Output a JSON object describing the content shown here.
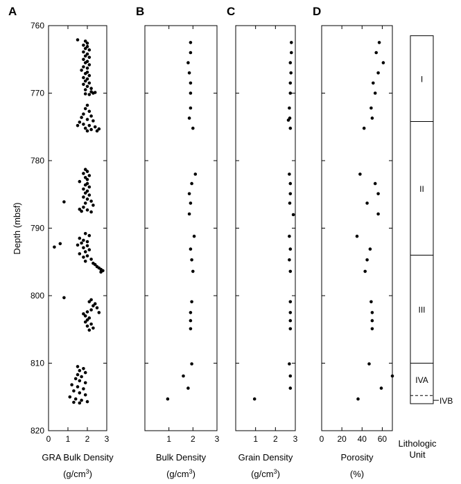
{
  "chart_data": {
    "type": "scatter",
    "ylabel": "Depth (mbsf)",
    "ylim": [
      760,
      820
    ],
    "y_inverted": true,
    "yticks": [
      "760",
      "770",
      "780",
      "790",
      "800",
      "810",
      "820"
    ],
    "grid": false,
    "panels": [
      {
        "letter": "A",
        "xlabel": "GRA Bulk Density",
        "units": {
          "pre": "(g/cm",
          "sup": "3",
          "post": ")"
        },
        "xlim": [
          0,
          3
        ],
        "xticks": [
          "0",
          "1",
          "2",
          "3"
        ],
        "points": [
          [
            1.5,
            762.1
          ],
          [
            1.9,
            762.3
          ],
          [
            2.0,
            762.6
          ],
          [
            1.8,
            762.9
          ],
          [
            2.0,
            763.1
          ],
          [
            1.9,
            763.4
          ],
          [
            2.1,
            763.6
          ],
          [
            1.8,
            763.9
          ],
          [
            2.0,
            764.2
          ],
          [
            1.9,
            764.5
          ],
          [
            2.1,
            764.7
          ],
          [
            1.8,
            765.0
          ],
          [
            2.0,
            765.3
          ],
          [
            1.9,
            765.5
          ],
          [
            2.1,
            765.8
          ],
          [
            1.8,
            766.1
          ],
          [
            2.0,
            766.3
          ],
          [
            1.7,
            766.6
          ],
          [
            2.0,
            766.9
          ],
          [
            1.9,
            767.1
          ],
          [
            2.1,
            767.4
          ],
          [
            1.8,
            767.7
          ],
          [
            2.0,
            767.9
          ],
          [
            1.9,
            768.2
          ],
          [
            2.1,
            768.5
          ],
          [
            1.8,
            768.7
          ],
          [
            2.0,
            769.0
          ],
          [
            2.2,
            769.3
          ],
          [
            1.9,
            769.5
          ],
          [
            2.2,
            769.8
          ],
          [
            2.3,
            770.0
          ],
          [
            2.1,
            770.2
          ],
          [
            2.4,
            769.9
          ],
          [
            1.9,
            770.1
          ],
          [
            2.0,
            771.8
          ],
          [
            1.9,
            772.3
          ],
          [
            2.1,
            772.7
          ],
          [
            1.8,
            773.1
          ],
          [
            2.2,
            773.4
          ],
          [
            1.7,
            773.6
          ],
          [
            2.0,
            773.9
          ],
          [
            2.3,
            774.1
          ],
          [
            1.6,
            774.3
          ],
          [
            1.8,
            774.6
          ],
          [
            2.1,
            774.8
          ],
          [
            2.4,
            775.0
          ],
          [
            1.9,
            775.2
          ],
          [
            2.2,
            775.4
          ],
          [
            2.5,
            775.6
          ],
          [
            1.5,
            774.8
          ],
          [
            2.6,
            775.3
          ],
          [
            2.0,
            775.6
          ],
          [
            1.9,
            781.3
          ],
          [
            2.0,
            781.6
          ],
          [
            1.8,
            781.9
          ],
          [
            2.1,
            782.2
          ],
          [
            1.9,
            782.5
          ],
          [
            2.0,
            782.8
          ],
          [
            1.6,
            783.1
          ],
          [
            2.0,
            783.4
          ],
          [
            1.9,
            783.6
          ],
          [
            2.1,
            783.9
          ],
          [
            1.8,
            784.2
          ],
          [
            2.0,
            784.5
          ],
          [
            1.9,
            784.8
          ],
          [
            2.1,
            785.1
          ],
          [
            1.8,
            785.4
          ],
          [
            2.0,
            785.7
          ],
          [
            2.2,
            786.0
          ],
          [
            0.8,
            786.1
          ],
          [
            1.9,
            786.3
          ],
          [
            2.3,
            786.6
          ],
          [
            1.8,
            786.9
          ],
          [
            1.6,
            787.2
          ],
          [
            1.7,
            787.5
          ],
          [
            2.0,
            787.3
          ],
          [
            2.2,
            787.6
          ],
          [
            1.9,
            790.8
          ],
          [
            2.1,
            791.1
          ],
          [
            1.6,
            791.5
          ],
          [
            1.8,
            791.8
          ],
          [
            2.0,
            792.0
          ],
          [
            1.7,
            792.2
          ],
          [
            0.6,
            792.3
          ],
          [
            1.5,
            792.5
          ],
          [
            2.0,
            792.6
          ],
          [
            1.8,
            792.9
          ],
          [
            0.3,
            792.8
          ],
          [
            2.1,
            793.2
          ],
          [
            1.9,
            793.5
          ],
          [
            1.6,
            793.8
          ],
          [
            2.0,
            794.1
          ],
          [
            1.8,
            794.3
          ],
          [
            2.2,
            794.6
          ],
          [
            1.9,
            794.9
          ],
          [
            2.3,
            795.2
          ],
          [
            2.4,
            795.4
          ],
          [
            2.5,
            795.7
          ],
          [
            2.6,
            795.9
          ],
          [
            2.7,
            796.1
          ],
          [
            2.8,
            796.3
          ],
          [
            2.7,
            796.5
          ],
          [
            0.8,
            800.3
          ],
          [
            2.2,
            800.6
          ],
          [
            2.1,
            800.9
          ],
          [
            2.4,
            801.2
          ],
          [
            2.3,
            801.5
          ],
          [
            2.5,
            801.8
          ],
          [
            2.2,
            802.1
          ],
          [
            2.0,
            802.4
          ],
          [
            1.8,
            802.7
          ],
          [
            2.6,
            802.5
          ],
          [
            1.9,
            803.0
          ],
          [
            2.1,
            803.3
          ],
          [
            2.0,
            803.6
          ],
          [
            1.9,
            803.9
          ],
          [
            2.2,
            804.2
          ],
          [
            2.0,
            804.5
          ],
          [
            2.3,
            804.8
          ],
          [
            2.1,
            805.1
          ],
          [
            1.5,
            810.5
          ],
          [
            1.8,
            810.8
          ],
          [
            1.6,
            811.1
          ],
          [
            1.9,
            811.4
          ],
          [
            1.5,
            811.7
          ],
          [
            1.7,
            812.0
          ],
          [
            1.4,
            812.3
          ],
          [
            1.6,
            812.6
          ],
          [
            1.9,
            812.9
          ],
          [
            1.2,
            813.2
          ],
          [
            1.5,
            813.5
          ],
          [
            1.8,
            813.8
          ],
          [
            1.3,
            814.1
          ],
          [
            1.6,
            814.4
          ],
          [
            1.9,
            814.7
          ],
          [
            1.1,
            815.0
          ],
          [
            1.4,
            815.3
          ],
          [
            1.7,
            815.5
          ],
          [
            2.0,
            815.7
          ],
          [
            1.3,
            815.8
          ],
          [
            1.6,
            815.9
          ]
        ]
      },
      {
        "letter": "B",
        "xlabel": "Bulk Density",
        "units": {
          "pre": "(g/cm",
          "sup": "3",
          "post": ")"
        },
        "xlim": [
          0,
          3
        ],
        "xticks": [
          "1",
          "2",
          "3"
        ],
        "points": [
          [
            1.9,
            762.5
          ],
          [
            1.9,
            764.0
          ],
          [
            1.8,
            765.5
          ],
          [
            1.85,
            767.0
          ],
          [
            1.9,
            768.5
          ],
          [
            1.9,
            770.0
          ],
          [
            1.9,
            772.2
          ],
          [
            1.85,
            773.7
          ],
          [
            2.0,
            775.2
          ],
          [
            2.1,
            782.0
          ],
          [
            1.95,
            783.4
          ],
          [
            1.85,
            784.9
          ],
          [
            1.9,
            786.3
          ],
          [
            1.85,
            787.9
          ],
          [
            2.05,
            791.2
          ],
          [
            1.9,
            793.1
          ],
          [
            1.95,
            794.7
          ],
          [
            2.0,
            796.4
          ],
          [
            1.95,
            800.9
          ],
          [
            1.9,
            802.5
          ],
          [
            1.9,
            803.7
          ],
          [
            1.9,
            804.9
          ],
          [
            1.95,
            810.1
          ],
          [
            1.6,
            811.9
          ],
          [
            1.8,
            813.7
          ],
          [
            0.95,
            815.3
          ]
        ]
      },
      {
        "letter": "C",
        "xlabel": "Grain Density",
        "units": {
          "pre": "(g/cm",
          "sup": "3",
          "post": ")"
        },
        "xlim": [
          0,
          3
        ],
        "xticks": [
          "1",
          "2",
          "3"
        ],
        "points": [
          [
            2.8,
            762.5
          ],
          [
            2.8,
            764.0
          ],
          [
            2.75,
            765.5
          ],
          [
            2.78,
            767.0
          ],
          [
            2.75,
            768.5
          ],
          [
            2.75,
            770.0
          ],
          [
            2.7,
            772.2
          ],
          [
            2.72,
            773.7
          ],
          [
            2.65,
            774.0
          ],
          [
            2.75,
            775.2
          ],
          [
            2.7,
            782.0
          ],
          [
            2.75,
            783.4
          ],
          [
            2.75,
            784.9
          ],
          [
            2.72,
            786.3
          ],
          [
            2.9,
            788.0
          ],
          [
            2.7,
            791.2
          ],
          [
            2.75,
            793.1
          ],
          [
            2.7,
            794.7
          ],
          [
            2.75,
            796.4
          ],
          [
            2.75,
            800.9
          ],
          [
            2.75,
            802.5
          ],
          [
            2.75,
            803.7
          ],
          [
            2.75,
            804.9
          ],
          [
            2.7,
            810.1
          ],
          [
            2.75,
            811.9
          ],
          [
            2.75,
            813.7
          ],
          [
            0.95,
            815.3
          ]
        ]
      },
      {
        "letter": "D",
        "xlabel": "Porosity",
        "units": {
          "pre": "(%)",
          "sup": "",
          "post": ""
        },
        "xlim": [
          0,
          70
        ],
        "xticks": [
          "0",
          "20",
          "40",
          "60"
        ],
        "points": [
          [
            57,
            762.5
          ],
          [
            54,
            764.0
          ],
          [
            61,
            765.5
          ],
          [
            56,
            767.0
          ],
          [
            51,
            768.5
          ],
          [
            53,
            770.0
          ],
          [
            49,
            772.2
          ],
          [
            50,
            773.7
          ],
          [
            42,
            775.2
          ],
          [
            38,
            782.0
          ],
          [
            53,
            783.4
          ],
          [
            56,
            784.9
          ],
          [
            45,
            786.3
          ],
          [
            56,
            787.9
          ],
          [
            35,
            791.2
          ],
          [
            48,
            793.1
          ],
          [
            45,
            794.7
          ],
          [
            43,
            796.4
          ],
          [
            49,
            800.9
          ],
          [
            50,
            802.5
          ],
          [
            50,
            803.7
          ],
          [
            50,
            804.9
          ],
          [
            47,
            810.1
          ],
          [
            70,
            811.9
          ],
          [
            59,
            813.7
          ],
          [
            36,
            815.3
          ]
        ]
      }
    ],
    "lithology": {
      "title_line1": "Lithologic",
      "title_line2": "Unit",
      "units": [
        {
          "label": "I",
          "top": 761.5,
          "bottom": 774.2
        },
        {
          "label": "II",
          "top": 774.2,
          "bottom": 794.0
        },
        {
          "label": "III",
          "top": 794.0,
          "bottom": 810.0
        },
        {
          "label": "IVA",
          "top": 810.0,
          "bottom": 814.8
        },
        {
          "label": "IVB",
          "top": 814.8,
          "bottom": 816.0
        }
      ]
    }
  }
}
